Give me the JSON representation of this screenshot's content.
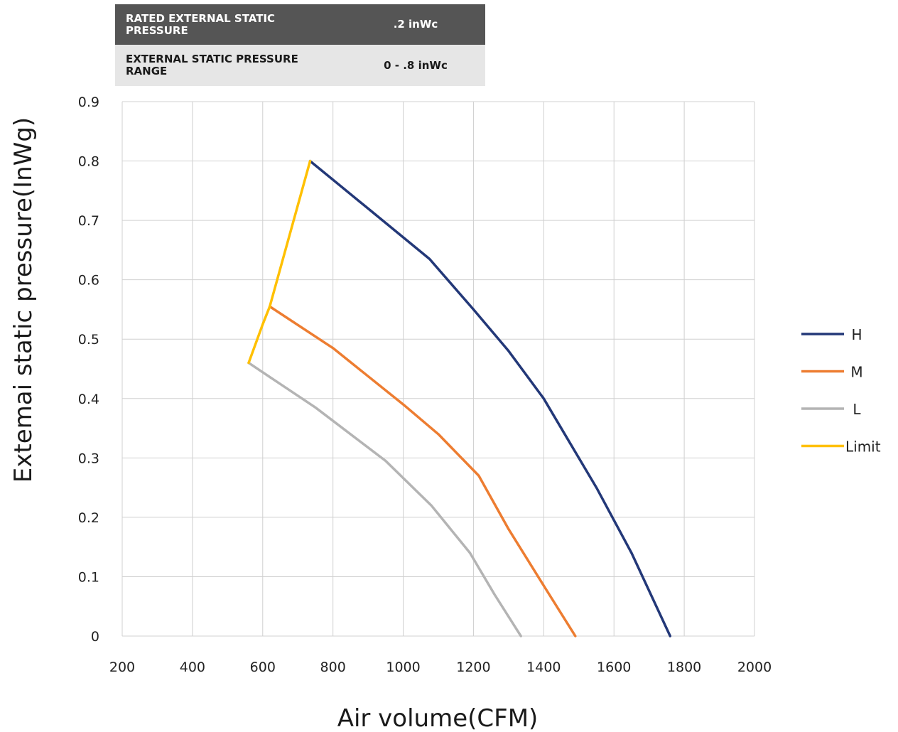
{
  "spec_table": {
    "rows": [
      {
        "label": "RATED EXTERNAL STATIC PRESSURE",
        "value": ".2 inWc"
      },
      {
        "label": "EXTERNAL STATIC PRESSURE RANGE",
        "value": "0 - .8 inWc"
      }
    ]
  },
  "chart_data": {
    "type": "line",
    "xlabel": "Air volume(CFM)",
    "ylabel": "Extemai static pressure(InWg)",
    "xlim": [
      200,
      2000
    ],
    "ylim": [
      0,
      0.9
    ],
    "x_ticks": [
      200,
      400,
      600,
      800,
      1000,
      1200,
      1400,
      1600,
      1800,
      2000
    ],
    "y_ticks": [
      0,
      0.1,
      0.2,
      0.3,
      0.4,
      0.5,
      0.6,
      0.7,
      0.8,
      0.9
    ],
    "y_tick_labels": [
      "0",
      "0.1",
      "0.2",
      "0.3",
      "0.4",
      "0.5",
      "0.6",
      "0.7",
      "0.8",
      "0.9"
    ],
    "grid": true,
    "legend_position": "right",
    "series": [
      {
        "name": "H",
        "color": "#233878",
        "points": [
          [
            735,
            0.8
          ],
          [
            900,
            0.72
          ],
          [
            1075,
            0.635
          ],
          [
            1200,
            0.55
          ],
          [
            1300,
            0.48
          ],
          [
            1400,
            0.4
          ],
          [
            1470,
            0.33
          ],
          [
            1550,
            0.25
          ],
          [
            1650,
            0.14
          ],
          [
            1760,
            0.0
          ]
        ]
      },
      {
        "name": "M",
        "color": "#ed7d31",
        "points": [
          [
            620,
            0.555
          ],
          [
            800,
            0.485
          ],
          [
            1000,
            0.39
          ],
          [
            1100,
            0.34
          ],
          [
            1215,
            0.27
          ],
          [
            1300,
            0.18
          ],
          [
            1400,
            0.085
          ],
          [
            1490,
            0.0
          ]
        ]
      },
      {
        "name": "L",
        "color": "#b4b4b4",
        "points": [
          [
            560,
            0.46
          ],
          [
            750,
            0.385
          ],
          [
            950,
            0.295
          ],
          [
            1080,
            0.22
          ],
          [
            1190,
            0.14
          ],
          [
            1260,
            0.07
          ],
          [
            1335,
            0.0
          ]
        ]
      },
      {
        "name": "Limit",
        "color": "#ffc000",
        "points": [
          [
            560,
            0.46
          ],
          [
            600,
            0.525
          ],
          [
            620,
            0.555
          ],
          [
            735,
            0.8
          ]
        ]
      }
    ]
  }
}
